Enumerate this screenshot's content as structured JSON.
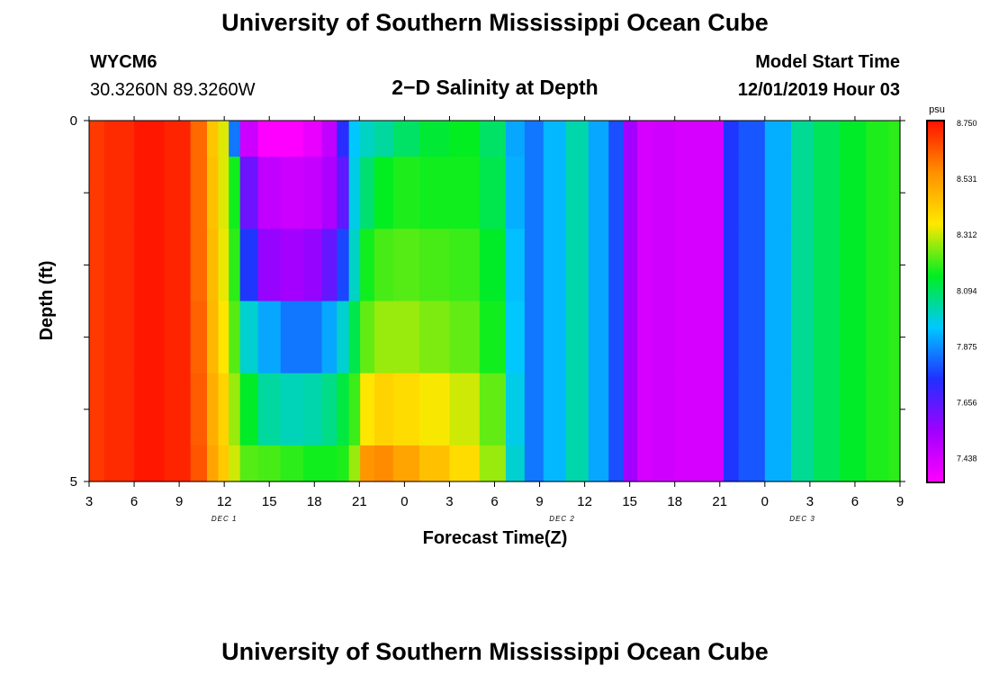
{
  "header": {
    "title": "University of Southern Mississippi Ocean Cube",
    "station": "WYCM6",
    "coords": "30.3260N 89.3260W",
    "subtitle": "2−D Salinity at Depth",
    "start_label": "Model Start Time",
    "start_value": "12/01/2019 Hour 03"
  },
  "footer": {
    "title": "University of Southern Mississippi Ocean Cube"
  },
  "colorbar": {
    "unit": "psu",
    "labels": [
      "8.750",
      "8.531",
      "8.312",
      "8.094",
      "7.875",
      "7.656",
      "7.438"
    ],
    "stops": [
      "#ff00ff",
      "#a000ff",
      "#2030ff",
      "#00c8ff",
      "#00ee20",
      "#ffe800",
      "#ff9000",
      "#ff1000"
    ]
  },
  "chart_data": {
    "type": "heatmap",
    "title": "2−D Salinity at Depth",
    "xlabel": "Forecast Time(Z)",
    "ylabel": "Depth (ft)",
    "x_ticks": [
      "3",
      "6",
      "9",
      "12",
      "15",
      "18",
      "21",
      "0",
      "3",
      "6",
      "9",
      "12",
      "15",
      "18",
      "21",
      "0",
      "3",
      "6",
      "9"
    ],
    "y_ticks": [
      "0",
      "5"
    ],
    "y_range": [
      0,
      5
    ],
    "day_labels": [
      {
        "label": "DEC 1",
        "hour": 12
      },
      {
        "label": "DEC 2",
        "hour": 34.5
      },
      {
        "label": "DEC 3",
        "hour": 50.5
      }
    ],
    "hour_range": [
      3,
      57
    ],
    "value_range": [
      7.438,
      8.75
    ],
    "hours": [
      3,
      5,
      7,
      9,
      10.5,
      11.2,
      12,
      12.6,
      13.5,
      15,
      16.5,
      18,
      19,
      20,
      20.6,
      21.5,
      22.5,
      24,
      26,
      28,
      30,
      31.5,
      32.5,
      34,
      35.5,
      37,
      38.2,
      39,
      40,
      41,
      43,
      45,
      45.5,
      47,
      49,
      50.5,
      52,
      54,
      55.5,
      57
    ],
    "depth_layers": [
      {
        "depth": "0.0-0.5",
        "values": [
          8.69,
          8.71,
          8.74,
          8.72,
          8.62,
          8.45,
          8.35,
          7.9,
          7.54,
          7.44,
          7.44,
          7.48,
          7.56,
          7.8,
          8.0,
          8.05,
          8.08,
          8.13,
          8.17,
          8.19,
          8.13,
          7.96,
          7.9,
          7.98,
          8.07,
          7.96,
          7.85,
          7.62,
          7.52,
          7.53,
          7.52,
          7.52,
          7.82,
          7.86,
          7.97,
          8.09,
          8.14,
          8.18,
          8.21,
          8.22
        ]
      },
      {
        "depth": "0.5-1.5",
        "values": [
          8.69,
          8.71,
          8.74,
          8.72,
          8.62,
          8.46,
          8.35,
          8.2,
          7.7,
          7.56,
          7.54,
          7.55,
          7.6,
          7.72,
          8.02,
          8.12,
          8.19,
          8.21,
          8.2,
          8.2,
          8.15,
          7.97,
          7.9,
          7.98,
          8.07,
          7.96,
          7.85,
          7.62,
          7.52,
          7.53,
          7.52,
          7.52,
          7.82,
          7.86,
          7.97,
          8.09,
          8.14,
          8.18,
          8.21,
          8.22
        ]
      },
      {
        "depth": "1.5-2.5",
        "values": [
          8.69,
          8.71,
          8.74,
          8.72,
          8.62,
          8.47,
          8.36,
          8.22,
          7.82,
          7.64,
          7.62,
          7.64,
          7.71,
          7.84,
          8.05,
          8.2,
          8.24,
          8.25,
          8.24,
          8.23,
          8.18,
          7.99,
          7.9,
          7.98,
          8.07,
          7.96,
          7.85,
          7.62,
          7.52,
          7.53,
          7.52,
          7.52,
          7.82,
          7.86,
          7.97,
          8.09,
          8.14,
          8.18,
          8.21,
          8.22
        ]
      },
      {
        "depth": "2.5-3.5",
        "values": [
          8.69,
          8.71,
          8.74,
          8.72,
          8.63,
          8.48,
          8.38,
          8.25,
          8.04,
          7.96,
          7.9,
          7.9,
          7.96,
          8.04,
          8.15,
          8.26,
          8.3,
          8.3,
          8.28,
          8.26,
          8.2,
          8.0,
          7.9,
          7.98,
          8.07,
          7.96,
          7.85,
          7.62,
          7.52,
          7.53,
          7.52,
          7.52,
          7.82,
          7.86,
          7.97,
          8.09,
          8.14,
          8.18,
          8.21,
          8.22
        ]
      },
      {
        "depth": "3.5-4.5",
        "values": [
          8.69,
          8.71,
          8.74,
          8.72,
          8.64,
          8.5,
          8.42,
          8.3,
          8.18,
          8.08,
          8.06,
          8.07,
          8.1,
          8.16,
          8.23,
          8.38,
          8.42,
          8.4,
          8.37,
          8.34,
          8.26,
          8.02,
          7.9,
          7.98,
          8.07,
          7.96,
          7.85,
          7.62,
          7.52,
          7.53,
          7.52,
          7.52,
          7.82,
          7.86,
          7.97,
          8.09,
          8.14,
          8.18,
          8.21,
          8.22
        ]
      },
      {
        "depth": "4.5-5.0",
        "values": [
          8.69,
          8.71,
          8.74,
          8.72,
          8.65,
          8.52,
          8.44,
          8.34,
          8.25,
          8.24,
          8.22,
          8.2,
          8.2,
          8.21,
          8.3,
          8.55,
          8.57,
          8.52,
          8.46,
          8.4,
          8.3,
          8.04,
          7.9,
          7.98,
          8.07,
          7.96,
          7.85,
          7.62,
          7.52,
          7.53,
          7.52,
          7.52,
          7.82,
          7.86,
          7.97,
          8.09,
          8.14,
          8.18,
          8.21,
          8.22
        ]
      }
    ]
  }
}
